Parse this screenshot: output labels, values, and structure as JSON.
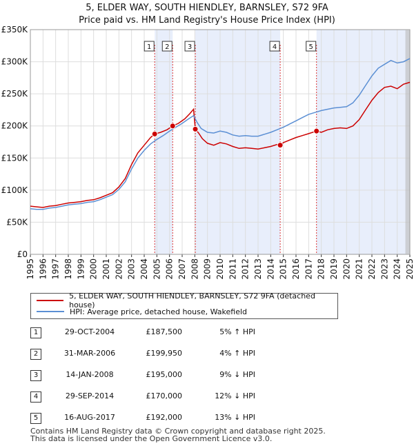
{
  "header": {
    "title_line1": "5, ELDER WAY, SOUTH HIENDLEY, BARNSLEY, S72 9FA",
    "title_line2": "Price paid vs. HM Land Registry's House Price Index (HPI)"
  },
  "chart_data": {
    "type": "line",
    "title": "5, ELDER WAY, SOUTH HIENDLEY, BARNSLEY, S72 9FA",
    "subtitle": "Price paid vs. HM Land Registry's House Price Index (HPI)",
    "xlabel": "",
    "ylabel": "",
    "xlim": [
      1995,
      2025
    ],
    "ylim": [
      0,
      350000
    ],
    "y_ticks": [
      0,
      50000,
      100000,
      150000,
      200000,
      250000,
      300000,
      350000
    ],
    "y_tick_labels": [
      "£0",
      "£50K",
      "£100K",
      "£150K",
      "£200K",
      "£250K",
      "£300K",
      "£350K"
    ],
    "x_ticks": [
      1995,
      1996,
      1997,
      1998,
      1999,
      2000,
      2001,
      2002,
      2003,
      2004,
      2005,
      2006,
      2007,
      2008,
      2009,
      2010,
      2011,
      2012,
      2013,
      2014,
      2015,
      2016,
      2017,
      2018,
      2019,
      2020,
      2021,
      2022,
      2023,
      2024,
      2025
    ],
    "x_tick_labels": [
      "1995",
      "1996",
      "1997",
      "1998",
      "1999",
      "2000",
      "2001",
      "2002",
      "2003",
      "2004",
      "2005",
      "2006",
      "2007",
      "2008",
      "2009",
      "2010",
      "2011",
      "2012",
      "2013",
      "2014",
      "2015",
      "2016",
      "2017",
      "2018",
      "2019",
      "2020",
      "2021",
      "2022",
      "2023",
      "2024",
      "2025"
    ],
    "grid": true,
    "series": [
      {
        "name": "5, ELDER WAY, SOUTH HIENDLEY, BARNSLEY, S72 9FA (detached house)",
        "color": "#cc0000",
        "x": [
          1995.0,
          1995.5,
          1996.0,
          1996.5,
          1997.0,
          1997.5,
          1998.0,
          1998.5,
          1999.0,
          1999.5,
          2000.0,
          2000.5,
          2001.0,
          2001.5,
          2002.0,
          2002.5,
          2003.0,
          2003.5,
          2004.0,
          2004.5,
          2004.83,
          2005.3,
          2005.8,
          2006.25,
          2006.7,
          2007.2,
          2007.6,
          2007.9,
          2008.04,
          2008.3,
          2008.6,
          2009.0,
          2009.5,
          2010.0,
          2010.5,
          2011.0,
          2011.5,
          2012.0,
          2012.5,
          2013.0,
          2013.5,
          2014.0,
          2014.5,
          2014.75,
          2015.0,
          2015.5,
          2016.0,
          2016.5,
          2017.0,
          2017.62,
          2018.0,
          2018.5,
          2019.0,
          2019.5,
          2020.0,
          2020.5,
          2021.0,
          2021.5,
          2022.0,
          2022.5,
          2023.0,
          2023.5,
          2024.0,
          2024.5,
          2025.0
        ],
        "values": [
          75000,
          74000,
          73000,
          75000,
          76000,
          78000,
          80000,
          81000,
          82000,
          84000,
          85000,
          88000,
          92000,
          96000,
          105000,
          118000,
          140000,
          158000,
          170000,
          182000,
          187500,
          190000,
          194000,
          199950,
          204000,
          211000,
          219000,
          226000,
          195000,
          189000,
          180000,
          173000,
          170000,
          174000,
          172000,
          168000,
          165000,
          166000,
          165000,
          164000,
          166000,
          168000,
          171000,
          170000,
          174000,
          178000,
          182000,
          185000,
          188000,
          192000,
          190000,
          194000,
          196000,
          197000,
          196000,
          200000,
          210000,
          225000,
          240000,
          252000,
          260000,
          262000,
          258000,
          265000,
          268000
        ]
      },
      {
        "name": "HPI: Average price, detached house, Wakefield",
        "color": "#5b8fd4",
        "x": [
          1995.0,
          1995.5,
          1996.0,
          1996.5,
          1997.0,
          1997.5,
          1998.0,
          1998.5,
          1999.0,
          1999.5,
          2000.0,
          2000.5,
          2001.0,
          2001.5,
          2002.0,
          2002.5,
          2003.0,
          2003.5,
          2004.0,
          2004.5,
          2005.0,
          2005.5,
          2006.0,
          2006.5,
          2007.0,
          2007.5,
          2007.9,
          2008.2,
          2008.5,
          2009.0,
          2009.5,
          2010.0,
          2010.5,
          2011.0,
          2011.5,
          2012.0,
          2012.5,
          2013.0,
          2013.5,
          2014.0,
          2014.5,
          2015.0,
          2015.5,
          2016.0,
          2016.5,
          2017.0,
          2017.5,
          2018.0,
          2018.5,
          2019.0,
          2019.5,
          2020.0,
          2020.5,
          2021.0,
          2021.5,
          2022.0,
          2022.5,
          2023.0,
          2023.5,
          2024.0,
          2024.5,
          2025.0
        ],
        "values": [
          71000,
          70000,
          70000,
          72000,
          73000,
          75000,
          77000,
          78000,
          79000,
          81000,
          82000,
          85000,
          89000,
          93000,
          101000,
          113000,
          133000,
          150000,
          162000,
          172000,
          179000,
          185000,
          192000,
          198000,
          204000,
          211000,
          216000,
          205000,
          196000,
          190000,
          189000,
          192000,
          190000,
          186000,
          184000,
          185000,
          184000,
          184000,
          187000,
          190000,
          194000,
          198000,
          203000,
          208000,
          213000,
          218000,
          221000,
          224000,
          226000,
          228000,
          229000,
          230000,
          236000,
          248000,
          263000,
          278000,
          290000,
          296000,
          302000,
          298000,
          300000,
          305000
        ]
      }
    ],
    "sales": [
      {
        "label": "1",
        "x": 2004.83,
        "value": 187500,
        "date": "29-OCT-2004",
        "price": "£187,500",
        "hpi": "5% ↑ HPI"
      },
      {
        "label": "2",
        "x": 2006.25,
        "value": 199950,
        "date": "31-MAR-2006",
        "price": "£199,950",
        "hpi": "4% ↑ HPI"
      },
      {
        "label": "3",
        "x": 2008.04,
        "value": 195000,
        "date": "14-JAN-2008",
        "price": "£195,000",
        "hpi": "9% ↓ HPI"
      },
      {
        "label": "4",
        "x": 2014.75,
        "value": 170000,
        "date": "29-SEP-2014",
        "price": "£170,000",
        "hpi": "12% ↓ HPI"
      },
      {
        "label": "5",
        "x": 2017.62,
        "value": 192000,
        "date": "16-AUG-2017",
        "price": "£192,000",
        "hpi": "13% ↓ HPI"
      }
    ],
    "legend_position": "below"
  },
  "legend": {
    "item1": "5, ELDER WAY, SOUTH HIENDLEY, BARNSLEY, S72 9FA (detached house)",
    "item2": "HPI: Average price, detached house, Wakefield"
  },
  "table": {
    "rows": [
      {
        "num": "1",
        "date": "29-OCT-2004",
        "price": "£187,500",
        "hpi": "5% ↑ HPI"
      },
      {
        "num": "2",
        "date": "31-MAR-2006",
        "price": "£199,950",
        "hpi": "4% ↑ HPI"
      },
      {
        "num": "3",
        "date": "14-JAN-2008",
        "price": "£195,000",
        "hpi": "9% ↓ HPI"
      },
      {
        "num": "4",
        "date": "29-SEP-2014",
        "price": "£170,000",
        "hpi": "12% ↓ HPI"
      },
      {
        "num": "5",
        "date": "16-AUG-2017",
        "price": "£192,000",
        "hpi": "13% ↓ HPI"
      }
    ]
  },
  "footer": {
    "line1": "Contains HM Land Registry data © Crown copyright and database right 2025.",
    "line2": "This data is licensed under the Open Government Licence v3.0."
  },
  "colors": {
    "price_line": "#cc0000",
    "hpi_line": "#5b8fd4",
    "shade": "#e8eefb",
    "vline": "#dd3333"
  }
}
